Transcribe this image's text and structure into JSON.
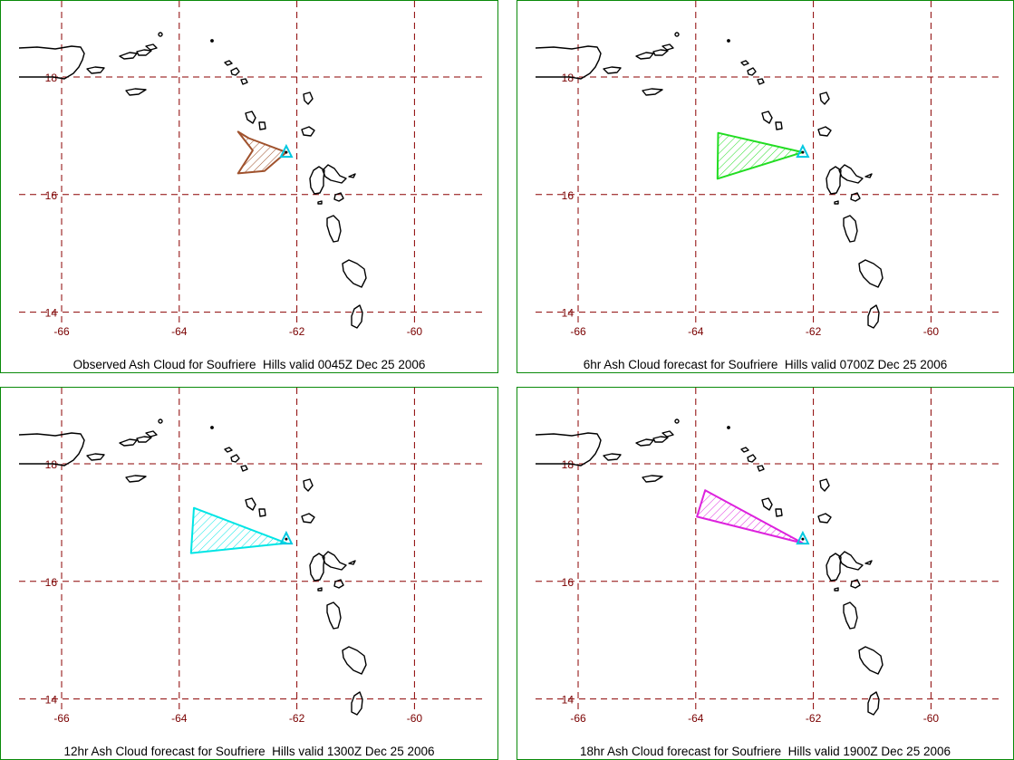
{
  "colors": {
    "frame": "#0a8a0a",
    "grid": "#8b0000",
    "tick_label": "#7a0000",
    "coast": "#000000",
    "volcano": "#00c8e0"
  },
  "map": {
    "lon_ticks": [
      -66,
      -64,
      -62,
      -60
    ],
    "lat_ticks": [
      18,
      16,
      14
    ],
    "lon_labels": [
      "-66",
      "-64",
      "-62",
      "-60"
    ],
    "lat_labels": [
      "18",
      "16",
      "14"
    ],
    "volcano": {
      "name": "Soufriere Hills",
      "lon": -62.18,
      "lat": 16.72
    }
  },
  "panels": [
    {
      "caption": "Observed Ash Cloud for Soufriere  Hills valid 0045Z Dec 25 2006",
      "cloud_color": "#a0522d",
      "cloud_polygon": [
        [
          -63.0,
          17.07
        ],
        [
          -62.82,
          16.96
        ],
        [
          -62.18,
          16.72
        ],
        [
          -62.55,
          16.4
        ],
        [
          -63.0,
          16.36
        ],
        [
          -62.75,
          16.75
        ]
      ]
    },
    {
      "caption": "6hr Ash Cloud forecast for Soufriere  Hills valid 0700Z Dec 25 2006",
      "cloud_color": "#22dd22",
      "cloud_polygon": [
        [
          -63.62,
          17.05
        ],
        [
          -62.18,
          16.72
        ],
        [
          -63.63,
          16.27
        ]
      ]
    },
    {
      "caption": "12hr Ash Cloud forecast for Soufriere  Hills valid 1300Z Dec 25 2006",
      "cloud_color": "#00e5e5",
      "cloud_polygon": [
        [
          -63.75,
          17.25
        ],
        [
          -62.18,
          16.65
        ],
        [
          -63.8,
          16.48
        ]
      ]
    },
    {
      "caption": "18hr Ash Cloud forecast for Soufriere  Hills valid 1900Z Dec 25 2006",
      "cloud_color": "#dd22dd",
      "cloud_polygon": [
        [
          -63.84,
          17.55
        ],
        [
          -62.18,
          16.65
        ],
        [
          -63.98,
          17.1
        ]
      ]
    }
  ]
}
